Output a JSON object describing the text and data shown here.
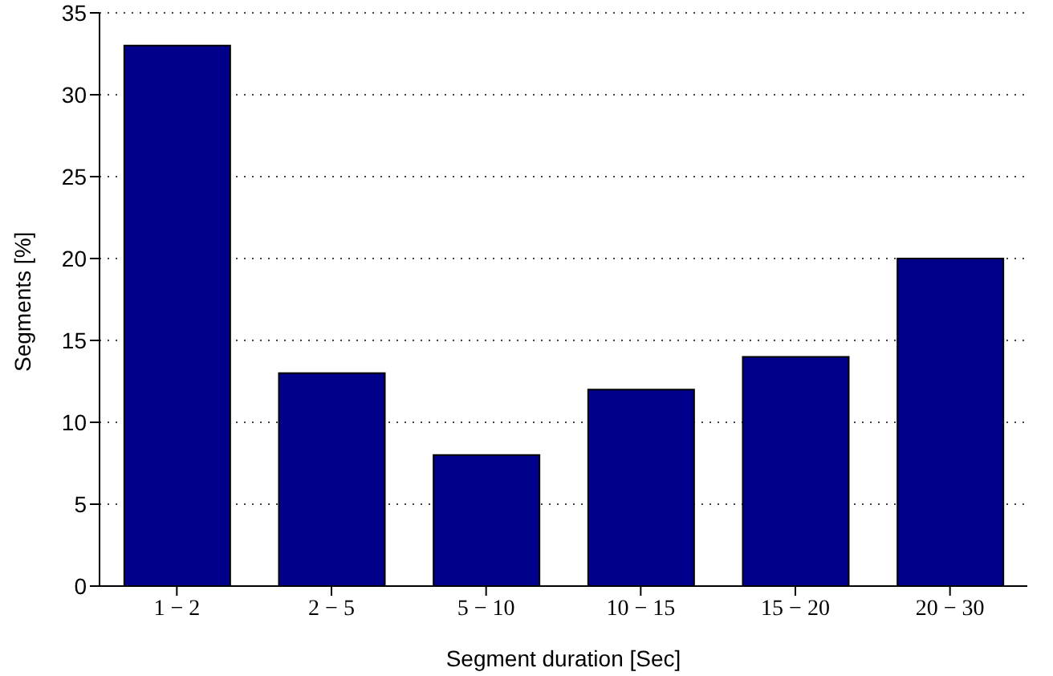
{
  "chart_data": {
    "type": "bar",
    "xlabel": "Segment duration [Sec]",
    "ylabel": "Segments [%]",
    "categories": [
      "1 − 2",
      "2 − 5",
      "5 − 10",
      "10 − 15",
      "15 − 20",
      "20 − 30"
    ],
    "values": [
      33,
      13,
      8,
      12,
      14,
      20
    ],
    "color": "#00008b",
    "ylim": [
      0,
      35
    ],
    "yticks": [
      0,
      5,
      10,
      15,
      20,
      25,
      30,
      35
    ],
    "grid": "y"
  }
}
